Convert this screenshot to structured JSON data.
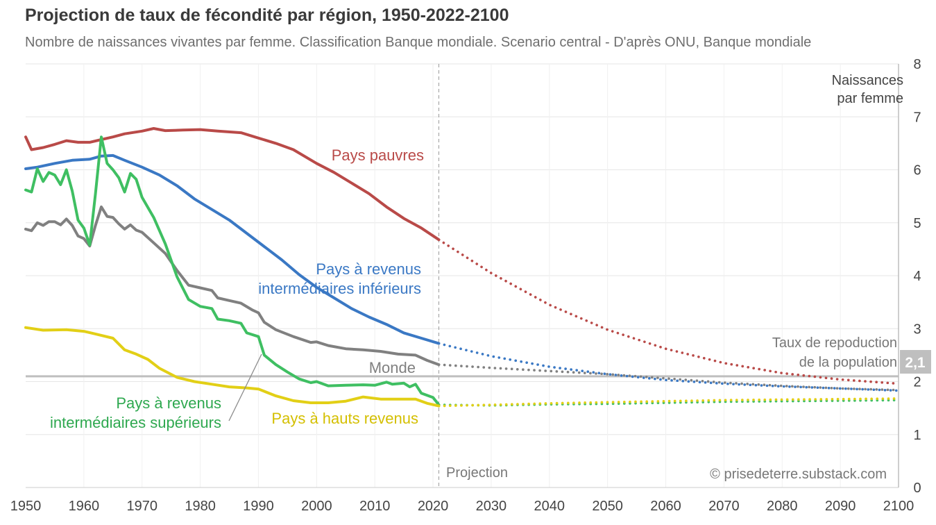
{
  "header": {
    "title": "Projection de taux de fécondité par région, 1950-2022-2100",
    "subtitle": "Nombre de naissances vivantes par femme. Classification Banque mondiale. Scenario central - D'après ONU, Banque mondiale"
  },
  "chart_data": {
    "type": "line",
    "title": "Projection de taux de fécondité par région, 1950-2022-2100",
    "ylabel": "Naissances par femme",
    "ylabel_lines": [
      "Naissances",
      "par femme"
    ],
    "xlim": [
      1950,
      2100
    ],
    "ylim": [
      0,
      8
    ],
    "x_ticks": [
      1950,
      1960,
      1970,
      1980,
      1990,
      2000,
      2010,
      2020,
      2030,
      2040,
      2050,
      2060,
      2070,
      2080,
      2090,
      2100
    ],
    "y_ticks": [
      0,
      1,
      2,
      3,
      4,
      5,
      6,
      7,
      8
    ],
    "projection_start": 2021,
    "projection_label": "Projection",
    "replacement": {
      "value": 2.1,
      "value_label": "2,1",
      "label_lines": [
        "Taux de repoduction",
        "de la population"
      ],
      "color": "#bfbfbf"
    },
    "series": [
      {
        "name": "Pays pauvres",
        "label_lines": [
          "Pays pauvres"
        ],
        "color": "#b94a48",
        "historical": [
          [
            1950,
            6.62
          ],
          [
            1951,
            6.38
          ],
          [
            1953,
            6.42
          ],
          [
            1955,
            6.48
          ],
          [
            1957,
            6.55
          ],
          [
            1959,
            6.52
          ],
          [
            1961,
            6.52
          ],
          [
            1963,
            6.57
          ],
          [
            1965,
            6.62
          ],
          [
            1967,
            6.68
          ],
          [
            1970,
            6.73
          ],
          [
            1972,
            6.78
          ],
          [
            1974,
            6.74
          ],
          [
            1977,
            6.75
          ],
          [
            1980,
            6.76
          ],
          [
            1983,
            6.73
          ],
          [
            1987,
            6.7
          ],
          [
            1990,
            6.6
          ],
          [
            1993,
            6.5
          ],
          [
            1996,
            6.38
          ],
          [
            2000,
            6.12
          ],
          [
            2003,
            5.95
          ],
          [
            2006,
            5.75
          ],
          [
            2009,
            5.55
          ],
          [
            2012,
            5.3
          ],
          [
            2015,
            5.08
          ],
          [
            2018,
            4.9
          ],
          [
            2021,
            4.68
          ]
        ],
        "projection": [
          [
            2021,
            4.68
          ],
          [
            2030,
            4.05
          ],
          [
            2040,
            3.45
          ],
          [
            2050,
            2.98
          ],
          [
            2060,
            2.62
          ],
          [
            2070,
            2.35
          ],
          [
            2080,
            2.16
          ],
          [
            2090,
            2.04
          ],
          [
            2100,
            1.96
          ]
        ]
      },
      {
        "name": "Pays à revenus intermédiaires inférieurs",
        "label_lines": [
          "Pays à revenus",
          "intermédiaires inférieurs"
        ],
        "color": "#3a78c4",
        "historical": [
          [
            1950,
            6.02
          ],
          [
            1952,
            6.05
          ],
          [
            1955,
            6.12
          ],
          [
            1958,
            6.18
          ],
          [
            1961,
            6.2
          ],
          [
            1963,
            6.26
          ],
          [
            1965,
            6.27
          ],
          [
            1967,
            6.18
          ],
          [
            1970,
            6.05
          ],
          [
            1973,
            5.9
          ],
          [
            1976,
            5.7
          ],
          [
            1979,
            5.45
          ],
          [
            1982,
            5.25
          ],
          [
            1985,
            5.05
          ],
          [
            1988,
            4.8
          ],
          [
            1991,
            4.55
          ],
          [
            1994,
            4.3
          ],
          [
            1997,
            4.02
          ],
          [
            2000,
            3.78
          ],
          [
            2003,
            3.58
          ],
          [
            2006,
            3.38
          ],
          [
            2009,
            3.22
          ],
          [
            2012,
            3.08
          ],
          [
            2015,
            2.92
          ],
          [
            2018,
            2.82
          ],
          [
            2021,
            2.72
          ]
        ],
        "projection": [
          [
            2021,
            2.72
          ],
          [
            2030,
            2.48
          ],
          [
            2040,
            2.28
          ],
          [
            2050,
            2.14
          ],
          [
            2060,
            2.03
          ],
          [
            2070,
            1.96
          ],
          [
            2080,
            1.91
          ],
          [
            2090,
            1.87
          ],
          [
            2100,
            1.83
          ]
        ]
      },
      {
        "name": "Monde",
        "label_lines": [
          "Monde"
        ],
        "color": "#808080",
        "historical": [
          [
            1950,
            4.88
          ],
          [
            1951,
            4.85
          ],
          [
            1952,
            5.0
          ],
          [
            1953,
            4.95
          ],
          [
            1954,
            5.02
          ],
          [
            1955,
            5.02
          ],
          [
            1956,
            4.96
          ],
          [
            1957,
            5.07
          ],
          [
            1958,
            4.95
          ],
          [
            1959,
            4.75
          ],
          [
            1960,
            4.7
          ],
          [
            1961,
            4.56
          ],
          [
            1962,
            4.95
          ],
          [
            1963,
            5.3
          ],
          [
            1964,
            5.12
          ],
          [
            1965,
            5.1
          ],
          [
            1966,
            4.98
          ],
          [
            1967,
            4.88
          ],
          [
            1968,
            4.96
          ],
          [
            1969,
            4.86
          ],
          [
            1970,
            4.82
          ],
          [
            1972,
            4.62
          ],
          [
            1974,
            4.42
          ],
          [
            1976,
            4.1
          ],
          [
            1978,
            3.82
          ],
          [
            1980,
            3.77
          ],
          [
            1982,
            3.72
          ],
          [
            1983,
            3.58
          ],
          [
            1985,
            3.53
          ],
          [
            1987,
            3.48
          ],
          [
            1989,
            3.35
          ],
          [
            1990,
            3.3
          ],
          [
            1991,
            3.12
          ],
          [
            1993,
            2.98
          ],
          [
            1996,
            2.85
          ],
          [
            1999,
            2.74
          ],
          [
            2000,
            2.75
          ],
          [
            2002,
            2.68
          ],
          [
            2005,
            2.62
          ],
          [
            2008,
            2.6
          ],
          [
            2011,
            2.57
          ],
          [
            2014,
            2.52
          ],
          [
            2017,
            2.5
          ],
          [
            2019,
            2.4
          ],
          [
            2021,
            2.32
          ]
        ],
        "projection": [
          [
            2021,
            2.32
          ],
          [
            2030,
            2.26
          ],
          [
            2040,
            2.2
          ],
          [
            2050,
            2.14
          ],
          [
            2060,
            2.06
          ],
          [
            2070,
            1.98
          ],
          [
            2080,
            1.92
          ],
          [
            2090,
            1.87
          ],
          [
            2100,
            1.84
          ]
        ]
      },
      {
        "name": "Pays à revenus intermédiaires supérieurs",
        "label_lines": [
          "Pays à revenus",
          "intermédiaires supérieurs"
        ],
        "color": "#3fbf62",
        "historical": [
          [
            1950,
            5.62
          ],
          [
            1951,
            5.58
          ],
          [
            1952,
            6.02
          ],
          [
            1953,
            5.78
          ],
          [
            1954,
            5.95
          ],
          [
            1955,
            5.9
          ],
          [
            1956,
            5.72
          ],
          [
            1957,
            6.0
          ],
          [
            1958,
            5.6
          ],
          [
            1959,
            5.05
          ],
          [
            1960,
            4.9
          ],
          [
            1961,
            4.58
          ],
          [
            1962,
            5.55
          ],
          [
            1963,
            6.62
          ],
          [
            1964,
            6.12
          ],
          [
            1965,
            6.0
          ],
          [
            1966,
            5.85
          ],
          [
            1967,
            5.58
          ],
          [
            1968,
            5.93
          ],
          [
            1969,
            5.82
          ],
          [
            1970,
            5.48
          ],
          [
            1972,
            5.1
          ],
          [
            1974,
            4.6
          ],
          [
            1976,
            3.98
          ],
          [
            1978,
            3.55
          ],
          [
            1980,
            3.42
          ],
          [
            1982,
            3.38
          ],
          [
            1983,
            3.18
          ],
          [
            1985,
            3.15
          ],
          [
            1987,
            3.1
          ],
          [
            1988,
            2.92
          ],
          [
            1990,
            2.85
          ],
          [
            1991,
            2.5
          ],
          [
            1993,
            2.32
          ],
          [
            1995,
            2.18
          ],
          [
            1997,
            2.05
          ],
          [
            1999,
            1.98
          ],
          [
            2000,
            2.0
          ],
          [
            2002,
            1.92
          ],
          [
            2005,
            1.93
          ],
          [
            2008,
            1.94
          ],
          [
            2010,
            1.93
          ],
          [
            2012,
            1.99
          ],
          [
            2013,
            1.95
          ],
          [
            2015,
            1.97
          ],
          [
            2016,
            1.9
          ],
          [
            2017,
            1.95
          ],
          [
            2018,
            1.78
          ],
          [
            2020,
            1.7
          ],
          [
            2021,
            1.56
          ]
        ],
        "projection": [
          [
            2021,
            1.56
          ],
          [
            2030,
            1.55
          ],
          [
            2040,
            1.57
          ],
          [
            2050,
            1.58
          ],
          [
            2060,
            1.6
          ],
          [
            2070,
            1.62
          ],
          [
            2080,
            1.63
          ],
          [
            2090,
            1.64
          ],
          [
            2100,
            1.65
          ]
        ]
      },
      {
        "name": "Pays à hauts revenus",
        "label_lines": [
          "Pays à hauts revenus"
        ],
        "color": "#e2cf16",
        "historical": [
          [
            1950,
            3.02
          ],
          [
            1953,
            2.97
          ],
          [
            1957,
            2.98
          ],
          [
            1960,
            2.95
          ],
          [
            1962,
            2.9
          ],
          [
            1965,
            2.82
          ],
          [
            1967,
            2.6
          ],
          [
            1969,
            2.52
          ],
          [
            1971,
            2.42
          ],
          [
            1973,
            2.25
          ],
          [
            1976,
            2.08
          ],
          [
            1979,
            2.0
          ],
          [
            1982,
            1.95
          ],
          [
            1985,
            1.9
          ],
          [
            1988,
            1.88
          ],
          [
            1990,
            1.86
          ],
          [
            1993,
            1.73
          ],
          [
            1996,
            1.64
          ],
          [
            1999,
            1.6
          ],
          [
            2002,
            1.6
          ],
          [
            2005,
            1.63
          ],
          [
            2008,
            1.71
          ],
          [
            2011,
            1.67
          ],
          [
            2014,
            1.67
          ],
          [
            2017,
            1.67
          ],
          [
            2019,
            1.59
          ],
          [
            2021,
            1.54
          ]
        ],
        "projection": [
          [
            2021,
            1.54
          ],
          [
            2030,
            1.56
          ],
          [
            2040,
            1.59
          ],
          [
            2050,
            1.61
          ],
          [
            2060,
            1.63
          ],
          [
            2070,
            1.65
          ],
          [
            2080,
            1.66
          ],
          [
            2090,
            1.67
          ],
          [
            2100,
            1.68
          ]
        ]
      }
    ],
    "connector_label": "Pays à revenus intermédiaires supérieurs"
  },
  "credit": "© prisedeterre.substack.com"
}
